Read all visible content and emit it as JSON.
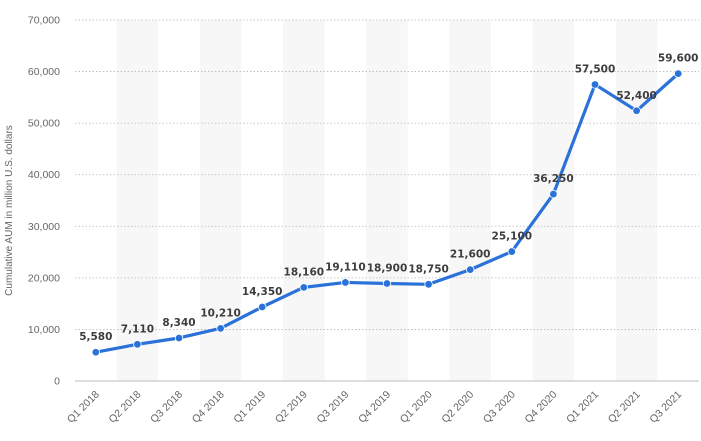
{
  "chart_data": {
    "type": "line",
    "title": "",
    "xlabel": "",
    "ylabel": "Cumulative AUM in million U.S. dollars",
    "categories": [
      "Q1 2018",
      "Q2 2018",
      "Q3 2018",
      "Q4 2018",
      "Q1 2019",
      "Q2 2019",
      "Q3 2019",
      "Q4 2019",
      "Q1 2020",
      "Q2 2020",
      "Q3 2020",
      "Q4 2020",
      "Q1 2021",
      "Q2 2021",
      "Q3 2021"
    ],
    "series": [
      {
        "values": [
          5580,
          7110,
          8340,
          10210,
          14350,
          18160,
          19110,
          18900,
          18750,
          21600,
          25100,
          36250,
          57500,
          52400,
          59600
        ],
        "labels": [
          "5,580",
          "7,110",
          "8,340",
          "10,210",
          "14,350",
          "18,160",
          "19,110",
          "18,900",
          "18,750",
          "21,600",
          "25,100",
          "36,250",
          "57,500",
          "52,400",
          "59,600"
        ]
      }
    ],
    "ylim": [
      0,
      70000
    ],
    "yticks": [
      0,
      10000,
      20000,
      30000,
      40000,
      50000,
      60000,
      70000
    ],
    "ytick_labels": [
      "0",
      "10,000",
      "20,000",
      "30,000",
      "40,000",
      "50,000",
      "60,000",
      "70,000"
    ],
    "grid": true,
    "legend": "none",
    "line_color": "#2a72d9",
    "band_color": "#f7f7f7"
  }
}
